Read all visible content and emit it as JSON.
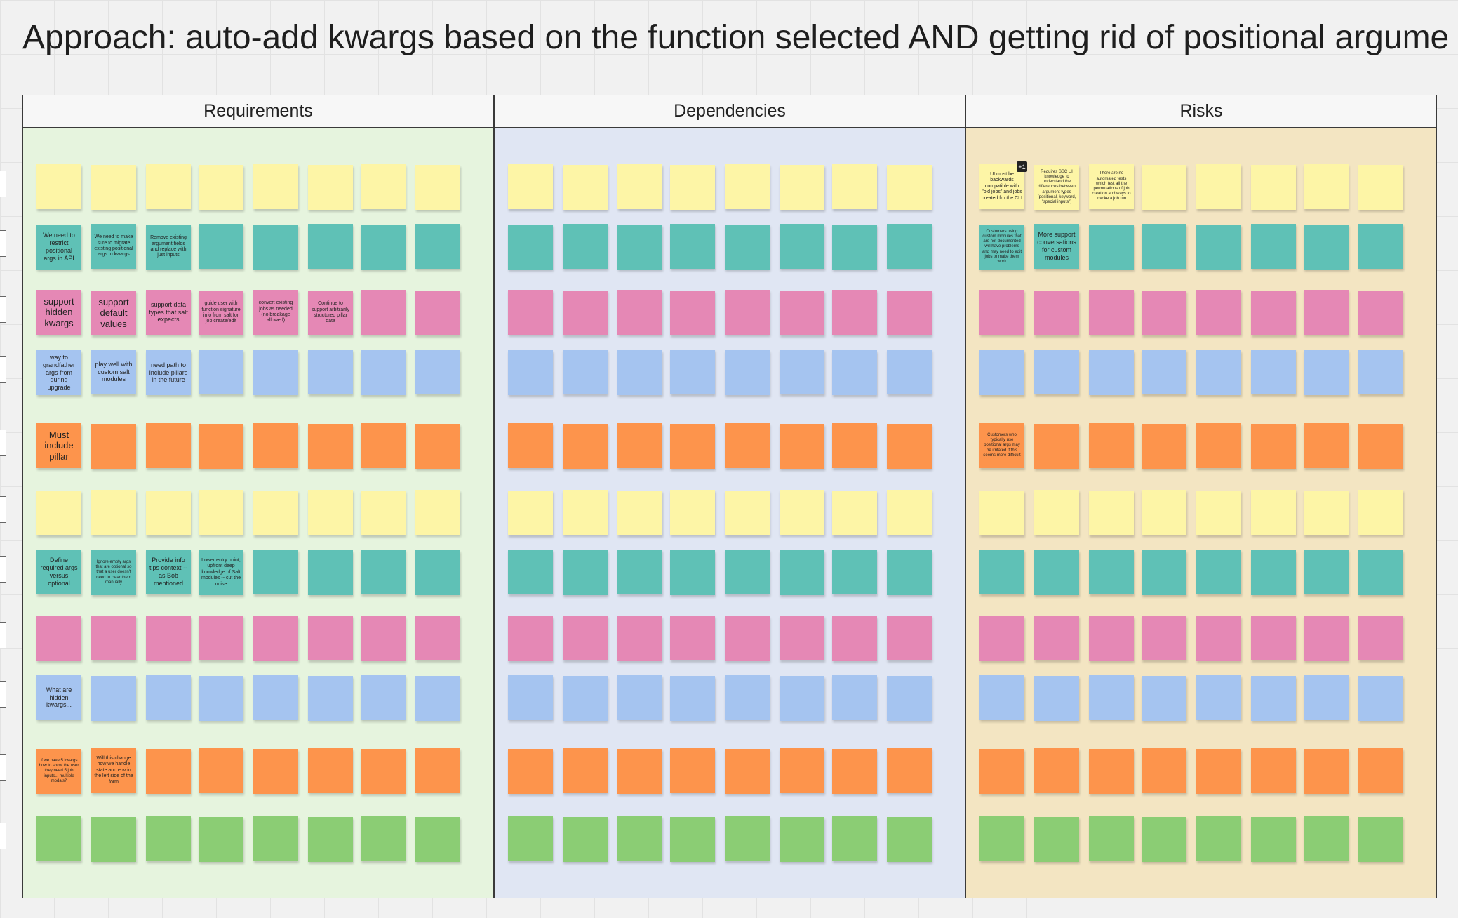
{
  "title": "Approach: auto-add kwargs based on the function selected AND getting rid of positional argume",
  "columns": [
    {
      "name": "Requirements",
      "rows": [
        [],
        [
          "We need to restrict positional args in API",
          "We need to make sure to migrate existing positional args to kwargs",
          "Remove existing argument fields and replace with just inputs"
        ],
        [
          "support hidden kwargs",
          "support default values",
          "support data types that salt expects",
          "guide user with function signature info from salt for job create/edit",
          "convert existing jobs as needed (no breakage allowed)",
          "Continue to support arbitrarily structured pillar data"
        ],
        [
          "way to grandfather args from during upgrade",
          "play well with custom salt modules",
          "need path to include pillars in the future"
        ],
        [
          "Must include pillar"
        ],
        [],
        [
          "Define required args versus optional",
          "Ignore empty args that are optional so that a user doesn't need to clear them manually",
          "Provide info tips context -- as Bob mentioned",
          "Lower entry point; upfront deep knowledge of Salt modules -- cut the noise"
        ],
        [],
        [
          "What are hidden kwargs..."
        ],
        [
          "If we have 5 kwargs how to show the user they need 5 job inputs... multiple modals?",
          "Will this change how we handle state and env in the left side of the form"
        ],
        []
      ]
    },
    {
      "name": "Dependencies",
      "rows": [
        [],
        [],
        [],
        [],
        [],
        [],
        [],
        [],
        [],
        [],
        []
      ]
    },
    {
      "name": "Risks",
      "badge": "+1",
      "rows": [
        [
          "UI must be backwards compatible with \"old jobs\" and jobs created fro the CLI",
          "Requires SSC UI knowledge to understand the differences between argument types (positional, keyword, \"special inputs\")",
          "There are no automated tests which test all the permutations of job creation and ways to invoke a job run"
        ],
        [
          "Customers using custom modules that are not documented will have problems and may need to edit jobs to make them work",
          "More support conversations for custom modules"
        ],
        [],
        [],
        [
          "Customers who typically use positional args may be irritated if this seems more difficult"
        ],
        [],
        [],
        [],
        [],
        [],
        []
      ]
    }
  ]
}
